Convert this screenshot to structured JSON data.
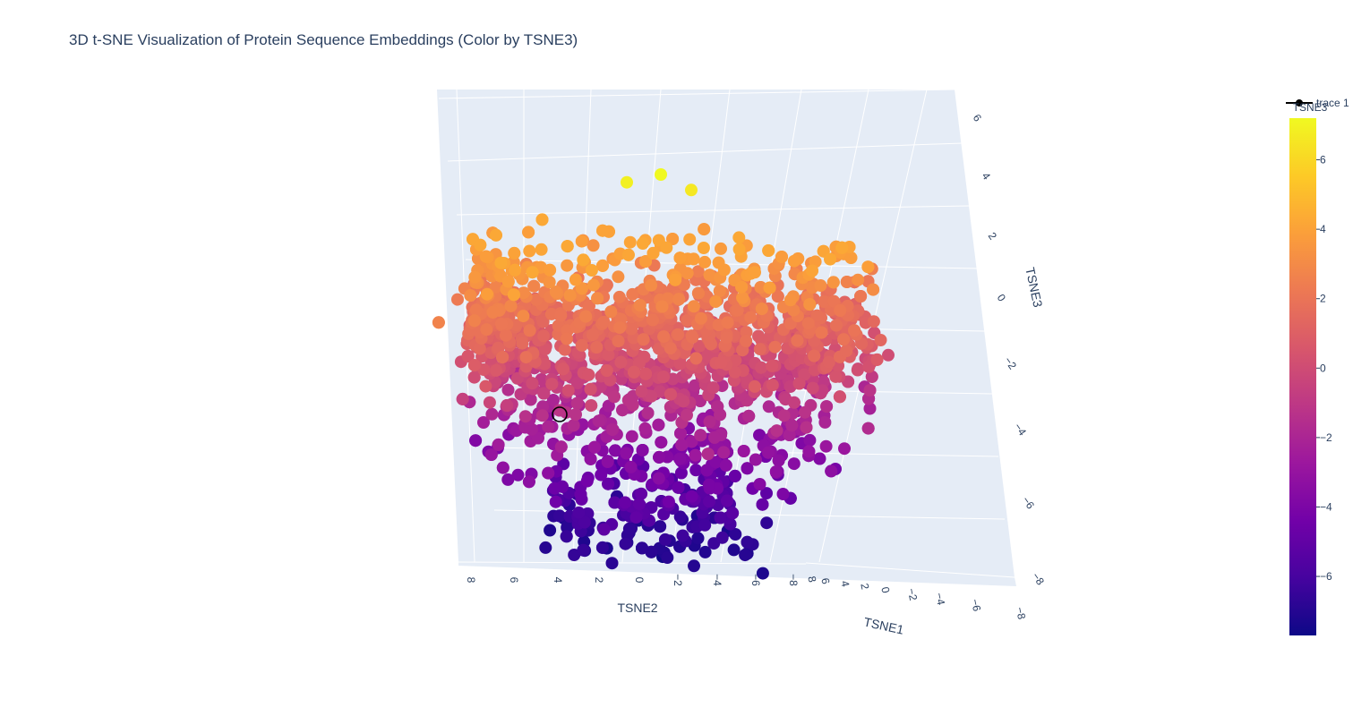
{
  "chart_data": {
    "type": "scatter",
    "title": "3D t-SNE Visualization of Protein Sequence Embeddings (Color by TSNE3)",
    "axes": {
      "x": {
        "label": "TSNE1",
        "ticks": [
          "8",
          "6",
          "4",
          "2",
          "0",
          "−2",
          "−4",
          "−6",
          "−8"
        ]
      },
      "y": {
        "label": "TSNE2",
        "ticks": [
          "8",
          "6",
          "4",
          "2",
          "0",
          "−2",
          "−4",
          "−6",
          "−8"
        ]
      },
      "z": {
        "label": "TSNE3",
        "ticks": [
          "6",
          "4",
          "2",
          "0",
          "−2",
          "−4",
          "−6",
          "−8"
        ]
      }
    },
    "colorbar": {
      "title": "TSNE3",
      "range": [
        -7.7,
        7.2
      ],
      "ticks": [
        "6",
        "4",
        "2",
        "0",
        "−2",
        "−4",
        "−6"
      ],
      "tick_values": [
        6,
        4,
        2,
        0,
        -2,
        -4,
        -6
      ],
      "colorscale": [
        "#0d0887",
        "#46039f",
        "#7201a8",
        "#9c179e",
        "#bd3786",
        "#d8576b",
        "#ed7953",
        "#fb9f3a",
        "#fdca26",
        "#f0f921"
      ]
    },
    "legend": {
      "entries": [
        {
          "name": "trace 1"
        }
      ],
      "position": "top-right"
    },
    "series": [
      {
        "name": "trace 1",
        "marker": "circle",
        "n_points": 2800,
        "z_range": [
          -7.7,
          7.2
        ],
        "distribution": "dense cloud; upper region near TSNE3 2 to 4, lower tail near TSNE3 -6 to -7",
        "outliers": [
          {
            "TSNE3": 7.2
          },
          {
            "TSNE3": 6.9
          },
          {
            "TSNE3": 6.6
          },
          {
            "TSNE3": -7.6
          },
          {
            "TSNE3": -2.4
          },
          {
            "TSNE3": -4.2
          }
        ]
      }
    ]
  }
}
